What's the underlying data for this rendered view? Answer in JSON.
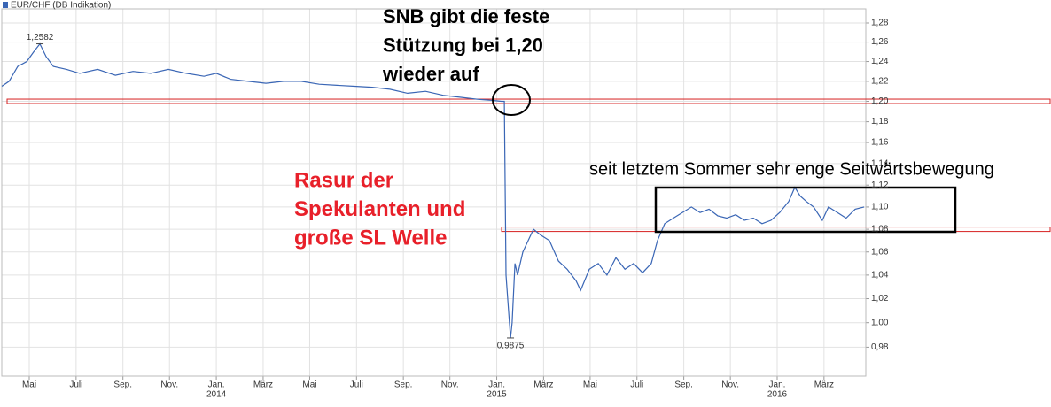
{
  "chart_data": {
    "type": "line",
    "log_scale": true,
    "grid": true,
    "legend": "top-left",
    "xlim": [
      2013.235,
      2016.316
    ],
    "ylim": [
      0.957,
      1.295
    ],
    "xticks": [
      {
        "value": 2013.333,
        "label": "Mai"
      },
      {
        "value": 2013.5,
        "label": "Juli"
      },
      {
        "value": 2013.667,
        "label": "Sep."
      },
      {
        "value": 2013.833,
        "label": "Nov."
      },
      {
        "value": 2014,
        "label": "Jan."
      },
      {
        "value": 2014.167,
        "label": "März"
      },
      {
        "value": 2014.333,
        "label": "Mai"
      },
      {
        "value": 2014.5,
        "label": "Juli"
      },
      {
        "value": 2014.667,
        "label": "Sep."
      },
      {
        "value": 2014.833,
        "label": "Nov."
      },
      {
        "value": 2015,
        "label": "Jan."
      },
      {
        "value": 2015.167,
        "label": "März"
      },
      {
        "value": 2015.333,
        "label": "Mai"
      },
      {
        "value": 2015.5,
        "label": "Juli"
      },
      {
        "value": 2015.667,
        "label": "Sep."
      },
      {
        "value": 2015.833,
        "label": "Nov."
      },
      {
        "value": 2016,
        "label": "Jan."
      },
      {
        "value": 2016.167,
        "label": "März"
      }
    ],
    "year_ticks": [
      4,
      10,
      16
    ],
    "yticks": [
      {
        "value": 1.28,
        "label": "1,28"
      },
      {
        "value": 1.26,
        "label": "1,26"
      },
      {
        "value": 1.24,
        "label": "1,24"
      },
      {
        "value": 1.22,
        "label": "1,22"
      },
      {
        "value": 1.2,
        "label": "1,20"
      },
      {
        "value": 1.18,
        "label": "1,18"
      },
      {
        "value": 1.16,
        "label": "1,16"
      },
      {
        "value": 1.14,
        "label": "1,14"
      },
      {
        "value": 1.12,
        "label": "1,12"
      },
      {
        "value": 1.1,
        "label": "1,10"
      },
      {
        "value": 1.08,
        "label": "1,08"
      },
      {
        "value": 1.06,
        "label": "1,06"
      },
      {
        "value": 1.04,
        "label": "1,04"
      },
      {
        "value": 1.02,
        "label": "1,02"
      },
      {
        "value": 1,
        "label": "1,00"
      },
      {
        "value": 0.98,
        "label": "0,98"
      }
    ],
    "series": [
      {
        "name": "EUR/CHF (DB Indikation)",
        "color": "#3a66b5",
        "x": [
          2013.235,
          2013.261,
          2013.292,
          2013.324,
          2013.349,
          2013.371,
          2013.393,
          2013.419,
          2013.466,
          2013.513,
          2013.577,
          2013.64,
          2013.703,
          2013.766,
          2013.829,
          2013.893,
          2013.956,
          2014.0,
          2014.051,
          2014.114,
          2014.177,
          2014.24,
          2014.303,
          2014.367,
          2014.43,
          2014.493,
          2014.556,
          2014.619,
          2014.682,
          2014.746,
          2014.809,
          2014.872,
          2014.935,
          2014.983,
          2015.017,
          2015.027,
          2015.033,
          2015.039,
          2015.049,
          2015.055,
          2015.065,
          2015.074,
          2015.093,
          2015.112,
          2015.131,
          2015.156,
          2015.188,
          2015.22,
          2015.251,
          2015.283,
          2015.299,
          2015.33,
          2015.362,
          2015.393,
          2015.425,
          2015.457,
          2015.488,
          2015.52,
          2015.551,
          2015.573,
          2015.599,
          2015.63,
          2015.662,
          2015.694,
          2015.725,
          2015.757,
          2015.788,
          2015.82,
          2015.852,
          2015.883,
          2015.915,
          2015.946,
          2015.978,
          2016.009,
          2016.041,
          2016.063,
          2016.082,
          2016.104,
          2016.13,
          2016.161,
          2016.183,
          2016.215,
          2016.246,
          2016.278,
          2016.31
        ],
        "values": [
          1.215,
          1.22,
          1.235,
          1.24,
          1.25,
          1.2582,
          1.245,
          1.235,
          1.232,
          1.228,
          1.232,
          1.226,
          1.23,
          1.228,
          1.232,
          1.228,
          1.225,
          1.228,
          1.222,
          1.22,
          1.218,
          1.22,
          1.22,
          1.217,
          1.216,
          1.215,
          1.214,
          1.212,
          1.208,
          1.21,
          1.206,
          1.204,
          1.202,
          1.201,
          1.2,
          1.2,
          1.04,
          1.02,
          0.9875,
          1.0,
          1.05,
          1.04,
          1.06,
          1.07,
          1.08,
          1.075,
          1.07,
          1.052,
          1.045,
          1.035,
          1.027,
          1.045,
          1.05,
          1.04,
          1.055,
          1.045,
          1.05,
          1.042,
          1.05,
          1.07,
          1.085,
          1.09,
          1.095,
          1.1,
          1.095,
          1.098,
          1.092,
          1.09,
          1.093,
          1.088,
          1.09,
          1.085,
          1.088,
          1.095,
          1.105,
          1.118,
          1.11,
          1.105,
          1.1,
          1.088,
          1.1,
          1.095,
          1.09,
          1.098,
          1.1
        ]
      }
    ],
    "extremes": [
      {
        "x": 2013.371,
        "value": 1.2582,
        "label": "1,2582",
        "position": "above"
      },
      {
        "x": 2015.049,
        "value": 0.9875,
        "label": "0,9875",
        "position": "below"
      }
    ],
    "reference_lines": [
      {
        "value": 1.2,
        "color": "#d62020"
      },
      {
        "value": 1.08,
        "color": "#d62020"
      }
    ],
    "annotations": [
      {
        "lines": [
          "SNB gibt die feste",
          "Stützung bei 1,20",
          "wieder auf"
        ],
        "color": "#000000"
      },
      {
        "lines": [
          "Rasur der",
          "Spekulanten und",
          "große SL Welle"
        ],
        "color": "#e8202a"
      },
      {
        "lines": [
          "seit letztem Sommer sehr enge Seitwärtsbewegung"
        ],
        "color": "#000000"
      }
    ]
  }
}
